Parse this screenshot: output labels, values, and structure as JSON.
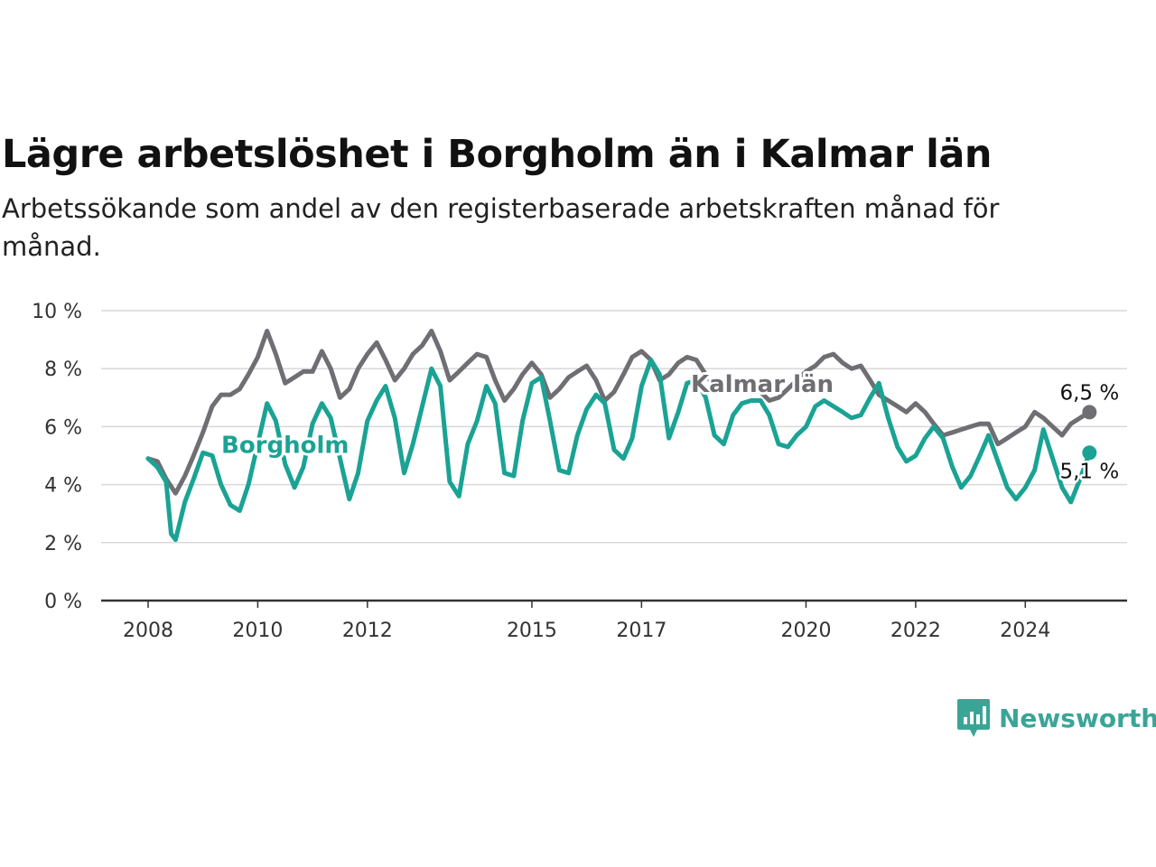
{
  "header": {
    "title": "Lägre arbetslöshet i Borgholm än i Kalmar län",
    "subtitle": "Arbetssökande som andel av den registerbaserade arbetskraften månad för månad."
  },
  "brand": {
    "name": "Newsworthy",
    "color": "#3aa597"
  },
  "chart_data": {
    "type": "line",
    "title": "Lägre arbetslöshet i Borgholm än i Kalmar län",
    "subtitle": "Arbetssökande som andel av den registerbaserade arbetskraften månad för månad.",
    "xlabel": "",
    "ylabel": "",
    "ylim": [
      0,
      10
    ],
    "xlim": [
      2008.0,
      2025.6
    ],
    "y_ticks": [
      0,
      2,
      4,
      6,
      8,
      10
    ],
    "y_tick_labels": [
      "0 %",
      "2 %",
      "4 %",
      "6 %",
      "8 %",
      "10 %"
    ],
    "x_ticks": [
      2008,
      2010,
      2012,
      2015,
      2017,
      2020,
      2022,
      2024
    ],
    "x_tick_labels": [
      "2008",
      "2010",
      "2012",
      "2015",
      "2017",
      "2020",
      "2022",
      "2024"
    ],
    "grid": true,
    "legend": "inline labels",
    "series": [
      {
        "name": "Kalmar län",
        "color": "#6e6e73",
        "end_label": "6,5 %",
        "points": [
          [
            2008.0,
            4.9
          ],
          [
            2008.17,
            4.8
          ],
          [
            2008.33,
            4.2
          ],
          [
            2008.5,
            3.7
          ],
          [
            2008.67,
            4.3
          ],
          [
            2008.83,
            5.0
          ],
          [
            2009.0,
            5.8
          ],
          [
            2009.17,
            6.7
          ],
          [
            2009.33,
            7.1
          ],
          [
            2009.5,
            7.1
          ],
          [
            2009.67,
            7.3
          ],
          [
            2009.83,
            7.8
          ],
          [
            2010.0,
            8.4
          ],
          [
            2010.17,
            9.3
          ],
          [
            2010.33,
            8.5
          ],
          [
            2010.5,
            7.5
          ],
          [
            2010.67,
            7.7
          ],
          [
            2010.83,
            7.9
          ],
          [
            2011.0,
            7.9
          ],
          [
            2011.17,
            8.6
          ],
          [
            2011.33,
            8.0
          ],
          [
            2011.5,
            7.0
          ],
          [
            2011.67,
            7.3
          ],
          [
            2011.83,
            8.0
          ],
          [
            2012.0,
            8.5
          ],
          [
            2012.17,
            8.9
          ],
          [
            2012.33,
            8.3
          ],
          [
            2012.5,
            7.6
          ],
          [
            2012.67,
            8.0
          ],
          [
            2012.83,
            8.5
          ],
          [
            2013.0,
            8.8
          ],
          [
            2013.17,
            9.3
          ],
          [
            2013.33,
            8.6
          ],
          [
            2013.5,
            7.6
          ],
          [
            2013.67,
            7.9
          ],
          [
            2013.83,
            8.2
          ],
          [
            2014.0,
            8.5
          ],
          [
            2014.17,
            8.4
          ],
          [
            2014.33,
            7.6
          ],
          [
            2014.5,
            6.9
          ],
          [
            2014.67,
            7.3
          ],
          [
            2014.83,
            7.8
          ],
          [
            2015.0,
            8.2
          ],
          [
            2015.17,
            7.8
          ],
          [
            2015.33,
            7.0
          ],
          [
            2015.5,
            7.3
          ],
          [
            2015.67,
            7.7
          ],
          [
            2015.83,
            7.9
          ],
          [
            2016.0,
            8.1
          ],
          [
            2016.17,
            7.6
          ],
          [
            2016.33,
            6.9
          ],
          [
            2016.5,
            7.2
          ],
          [
            2016.67,
            7.8
          ],
          [
            2016.83,
            8.4
          ],
          [
            2017.0,
            8.6
          ],
          [
            2017.17,
            8.3
          ],
          [
            2017.33,
            7.6
          ],
          [
            2017.5,
            7.8
          ],
          [
            2017.67,
            8.2
          ],
          [
            2017.83,
            8.4
          ],
          [
            2018.0,
            8.3
          ],
          [
            2018.17,
            7.8
          ],
          [
            2018.33,
            7.4
          ],
          [
            2018.5,
            7.4
          ],
          [
            2018.67,
            7.2
          ],
          [
            2018.83,
            7.3
          ],
          [
            2019.0,
            7.3
          ],
          [
            2019.17,
            7.2
          ],
          [
            2019.33,
            6.9
          ],
          [
            2019.5,
            7.0
          ],
          [
            2019.67,
            7.3
          ],
          [
            2019.83,
            7.6
          ],
          [
            2020.0,
            7.9
          ],
          [
            2020.17,
            8.1
          ],
          [
            2020.33,
            8.4
          ],
          [
            2020.5,
            8.5
          ],
          [
            2020.67,
            8.2
          ],
          [
            2020.83,
            8.0
          ],
          [
            2021.0,
            8.1
          ],
          [
            2021.17,
            7.6
          ],
          [
            2021.33,
            7.1
          ],
          [
            2021.5,
            6.9
          ],
          [
            2021.67,
            6.7
          ],
          [
            2021.83,
            6.5
          ],
          [
            2022.0,
            6.8
          ],
          [
            2022.17,
            6.5
          ],
          [
            2022.33,
            6.1
          ],
          [
            2022.5,
            5.7
          ],
          [
            2022.67,
            5.8
          ],
          [
            2022.83,
            5.9
          ],
          [
            2023.0,
            6.0
          ],
          [
            2023.17,
            6.1
          ],
          [
            2023.33,
            6.1
          ],
          [
            2023.5,
            5.4
          ],
          [
            2023.67,
            5.6
          ],
          [
            2023.83,
            5.8
          ],
          [
            2024.0,
            6.0
          ],
          [
            2024.17,
            6.5
          ],
          [
            2024.33,
            6.3
          ],
          [
            2024.5,
            6.0
          ],
          [
            2024.67,
            5.7
          ],
          [
            2024.83,
            6.1
          ],
          [
            2025.0,
            6.3
          ],
          [
            2025.17,
            6.5
          ]
        ]
      },
      {
        "name": "Borgholm",
        "color": "#1aa394",
        "end_label": "5,1 %",
        "points": [
          [
            2008.0,
            4.9
          ],
          [
            2008.17,
            4.6
          ],
          [
            2008.33,
            4.1
          ],
          [
            2008.42,
            2.3
          ],
          [
            2008.5,
            2.1
          ],
          [
            2008.67,
            3.4
          ],
          [
            2008.83,
            4.2
          ],
          [
            2009.0,
            5.1
          ],
          [
            2009.17,
            5.0
          ],
          [
            2009.33,
            4.0
          ],
          [
            2009.5,
            3.3
          ],
          [
            2009.67,
            3.1
          ],
          [
            2009.83,
            4.0
          ],
          [
            2010.0,
            5.4
          ],
          [
            2010.17,
            6.8
          ],
          [
            2010.33,
            6.2
          ],
          [
            2010.5,
            4.7
          ],
          [
            2010.67,
            3.9
          ],
          [
            2010.83,
            4.6
          ],
          [
            2011.0,
            6.1
          ],
          [
            2011.17,
            6.8
          ],
          [
            2011.33,
            6.3
          ],
          [
            2011.5,
            4.9
          ],
          [
            2011.67,
            3.5
          ],
          [
            2011.83,
            4.4
          ],
          [
            2012.0,
            6.2
          ],
          [
            2012.17,
            6.9
          ],
          [
            2012.33,
            7.4
          ],
          [
            2012.5,
            6.3
          ],
          [
            2012.67,
            4.4
          ],
          [
            2012.83,
            5.4
          ],
          [
            2013.0,
            6.7
          ],
          [
            2013.17,
            8.0
          ],
          [
            2013.33,
            7.4
          ],
          [
            2013.5,
            4.1
          ],
          [
            2013.67,
            3.6
          ],
          [
            2013.83,
            5.4
          ],
          [
            2014.0,
            6.2
          ],
          [
            2014.17,
            7.4
          ],
          [
            2014.33,
            6.8
          ],
          [
            2014.5,
            4.4
          ],
          [
            2014.67,
            4.3
          ],
          [
            2014.83,
            6.2
          ],
          [
            2015.0,
            7.5
          ],
          [
            2015.17,
            7.7
          ],
          [
            2015.33,
            6.2
          ],
          [
            2015.5,
            4.5
          ],
          [
            2015.67,
            4.4
          ],
          [
            2015.83,
            5.7
          ],
          [
            2016.0,
            6.6
          ],
          [
            2016.17,
            7.1
          ],
          [
            2016.33,
            6.8
          ],
          [
            2016.5,
            5.2
          ],
          [
            2016.67,
            4.9
          ],
          [
            2016.83,
            5.6
          ],
          [
            2017.0,
            7.4
          ],
          [
            2017.17,
            8.3
          ],
          [
            2017.33,
            7.8
          ],
          [
            2017.5,
            5.6
          ],
          [
            2017.67,
            6.5
          ],
          [
            2017.83,
            7.5
          ],
          [
            2018.0,
            7.6
          ],
          [
            2018.17,
            7.0
          ],
          [
            2018.33,
            5.7
          ],
          [
            2018.5,
            5.4
          ],
          [
            2018.67,
            6.4
          ],
          [
            2018.83,
            6.8
          ],
          [
            2019.0,
            6.9
          ],
          [
            2019.17,
            6.9
          ],
          [
            2019.33,
            6.4
          ],
          [
            2019.5,
            5.4
          ],
          [
            2019.67,
            5.3
          ],
          [
            2019.83,
            5.7
          ],
          [
            2020.0,
            6.0
          ],
          [
            2020.17,
            6.7
          ],
          [
            2020.33,
            6.9
          ],
          [
            2020.5,
            6.7
          ],
          [
            2020.67,
            6.5
          ],
          [
            2020.83,
            6.3
          ],
          [
            2021.0,
            6.4
          ],
          [
            2021.17,
            7.0
          ],
          [
            2021.33,
            7.5
          ],
          [
            2021.5,
            6.3
          ],
          [
            2021.67,
            5.3
          ],
          [
            2021.83,
            4.8
          ],
          [
            2022.0,
            5.0
          ],
          [
            2022.17,
            5.6
          ],
          [
            2022.33,
            6.0
          ],
          [
            2022.5,
            5.6
          ],
          [
            2022.67,
            4.6
          ],
          [
            2022.83,
            3.9
          ],
          [
            2023.0,
            4.3
          ],
          [
            2023.17,
            5.0
          ],
          [
            2023.33,
            5.7
          ],
          [
            2023.5,
            4.8
          ],
          [
            2023.67,
            3.9
          ],
          [
            2023.83,
            3.5
          ],
          [
            2024.0,
            3.9
          ],
          [
            2024.17,
            4.5
          ],
          [
            2024.33,
            5.9
          ],
          [
            2024.5,
            4.9
          ],
          [
            2024.67,
            3.9
          ],
          [
            2024.83,
            3.4
          ],
          [
            2025.0,
            4.2
          ],
          [
            2025.17,
            5.1
          ]
        ]
      }
    ]
  }
}
